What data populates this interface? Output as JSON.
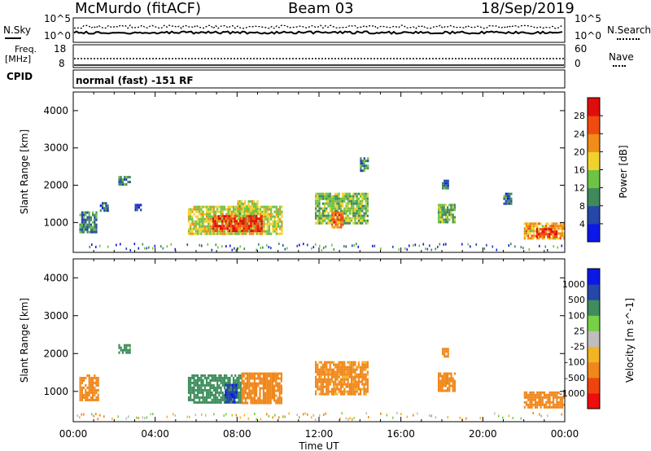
{
  "header": {
    "station": "McMurdo (fitACF)",
    "beam": "Beam 03",
    "date": "18/Sep/2019"
  },
  "noise_panel": {
    "left_label": "N.Sky",
    "right_label": "N.Search",
    "left_ticks": [
      "10^5",
      "10^0"
    ],
    "right_ticks": [
      "10^5",
      "10^0"
    ]
  },
  "freq_panel": {
    "left_label_1": "Freq.",
    "left_label_2": "[MHz]",
    "right_label": "Nave",
    "left_ticks": [
      "18",
      "8"
    ],
    "right_ticks": [
      "60",
      "0"
    ]
  },
  "cpid": {
    "label": "CPID",
    "value": "normal (fast) -151 RF"
  },
  "colors": {
    "power_scale": [
      "#0c18e8",
      "#2447a8",
      "#3f8a5a",
      "#6ec245",
      "#f1d22a",
      "#f08c17",
      "#f04a10",
      "#e00d0d"
    ],
    "velocity_scale": [
      "#f00c0c",
      "#f0440f",
      "#f0871b",
      "#f3b424",
      "#bebebe",
      "#78cf48",
      "#3d8d5d",
      "#2447a8",
      "#0c18e8"
    ]
  },
  "chart_data": [
    {
      "type": "heatmap",
      "name": "power",
      "ylabel": "Slant Range [km]",
      "ylim": [
        200,
        4500
      ],
      "yticks": [
        1000,
        2000,
        3000,
        4000
      ],
      "xlim": [
        0,
        24
      ],
      "colorbar": {
        "label": "Power [dB]",
        "ticks": [
          "4",
          "8",
          "12",
          "16",
          "20",
          "24",
          "28"
        ],
        "range": [
          0,
          32
        ]
      },
      "echo_regions": [
        {
          "t0": 0.3,
          "t1": 1.1,
          "r0": 750,
          "r1": 1300,
          "value": 10
        },
        {
          "t0": 1.3,
          "t1": 1.7,
          "r0": 1350,
          "r1": 1550,
          "value": 6
        },
        {
          "t0": 2.2,
          "t1": 2.8,
          "r0": 2000,
          "r1": 2250,
          "value": 9
        },
        {
          "t0": 3.0,
          "t1": 3.3,
          "r0": 1350,
          "r1": 1500,
          "value": 6
        },
        {
          "t0": 5.6,
          "t1": 10.2,
          "r0": 700,
          "r1": 1450,
          "value": 17
        },
        {
          "t0": 6.8,
          "t1": 9.2,
          "r0": 750,
          "r1": 1200,
          "value": 27
        },
        {
          "t0": 8.0,
          "t1": 9.0,
          "r0": 1200,
          "r1": 1600,
          "value": 16
        },
        {
          "t0": 11.8,
          "t1": 14.4,
          "r0": 950,
          "r1": 1800,
          "value": 14
        },
        {
          "t0": 12.6,
          "t1": 13.2,
          "r0": 900,
          "r1": 1300,
          "value": 24
        },
        {
          "t0": 14.0,
          "t1": 14.4,
          "r0": 2400,
          "r1": 2750,
          "value": 10
        },
        {
          "t0": 17.8,
          "t1": 18.6,
          "r0": 1000,
          "r1": 1500,
          "value": 13
        },
        {
          "t0": 18.0,
          "t1": 18.3,
          "r0": 1950,
          "r1": 2150,
          "value": 8
        },
        {
          "t0": 21.0,
          "t1": 21.4,
          "r0": 1500,
          "r1": 1800,
          "value": 8
        },
        {
          "t0": 22.0,
          "t1": 24.0,
          "r0": 550,
          "r1": 1000,
          "value": 20
        },
        {
          "t0": 22.6,
          "t1": 23.6,
          "r0": 600,
          "r1": 850,
          "value": 28
        }
      ]
    },
    {
      "type": "heatmap",
      "name": "velocity",
      "ylabel": "Slant Range [km]",
      "ylim": [
        200,
        4500
      ],
      "yticks": [
        1000,
        2000,
        3000,
        4000
      ],
      "xlim": [
        0,
        24
      ],
      "xlabel": "Time UT",
      "xticks": [
        "00:00",
        "04:00",
        "08:00",
        "12:00",
        "16:00",
        "20:00",
        "00:00"
      ],
      "colorbar": {
        "label": "Velocity [m s^-1]",
        "ticks": [
          "1000",
          "500",
          "100",
          "25",
          "-25",
          "-100",
          "-500",
          "-1000"
        ]
      },
      "echo_regions": [
        {
          "t0": 0.3,
          "t1": 1.2,
          "r0": 750,
          "r1": 1450,
          "value": -300
        },
        {
          "t0": 2.2,
          "t1": 2.8,
          "r0": 2000,
          "r1": 2250,
          "value": 150
        },
        {
          "t0": 5.6,
          "t1": 8.2,
          "r0": 700,
          "r1": 1450,
          "value": 300
        },
        {
          "t0": 7.4,
          "t1": 8.0,
          "r0": 700,
          "r1": 1200,
          "value": 800
        },
        {
          "t0": 8.2,
          "t1": 10.2,
          "r0": 700,
          "r1": 1500,
          "value": -200
        },
        {
          "t0": 11.8,
          "t1": 14.4,
          "r0": 950,
          "r1": 1800,
          "value": -150
        },
        {
          "t0": 17.8,
          "t1": 18.6,
          "r0": 1000,
          "r1": 1500,
          "value": -300
        },
        {
          "t0": 18.0,
          "t1": 18.3,
          "r0": 1950,
          "r1": 2150,
          "value": -200
        },
        {
          "t0": 22.0,
          "t1": 24.0,
          "r0": 550,
          "r1": 1000,
          "value": -200
        }
      ]
    }
  ]
}
